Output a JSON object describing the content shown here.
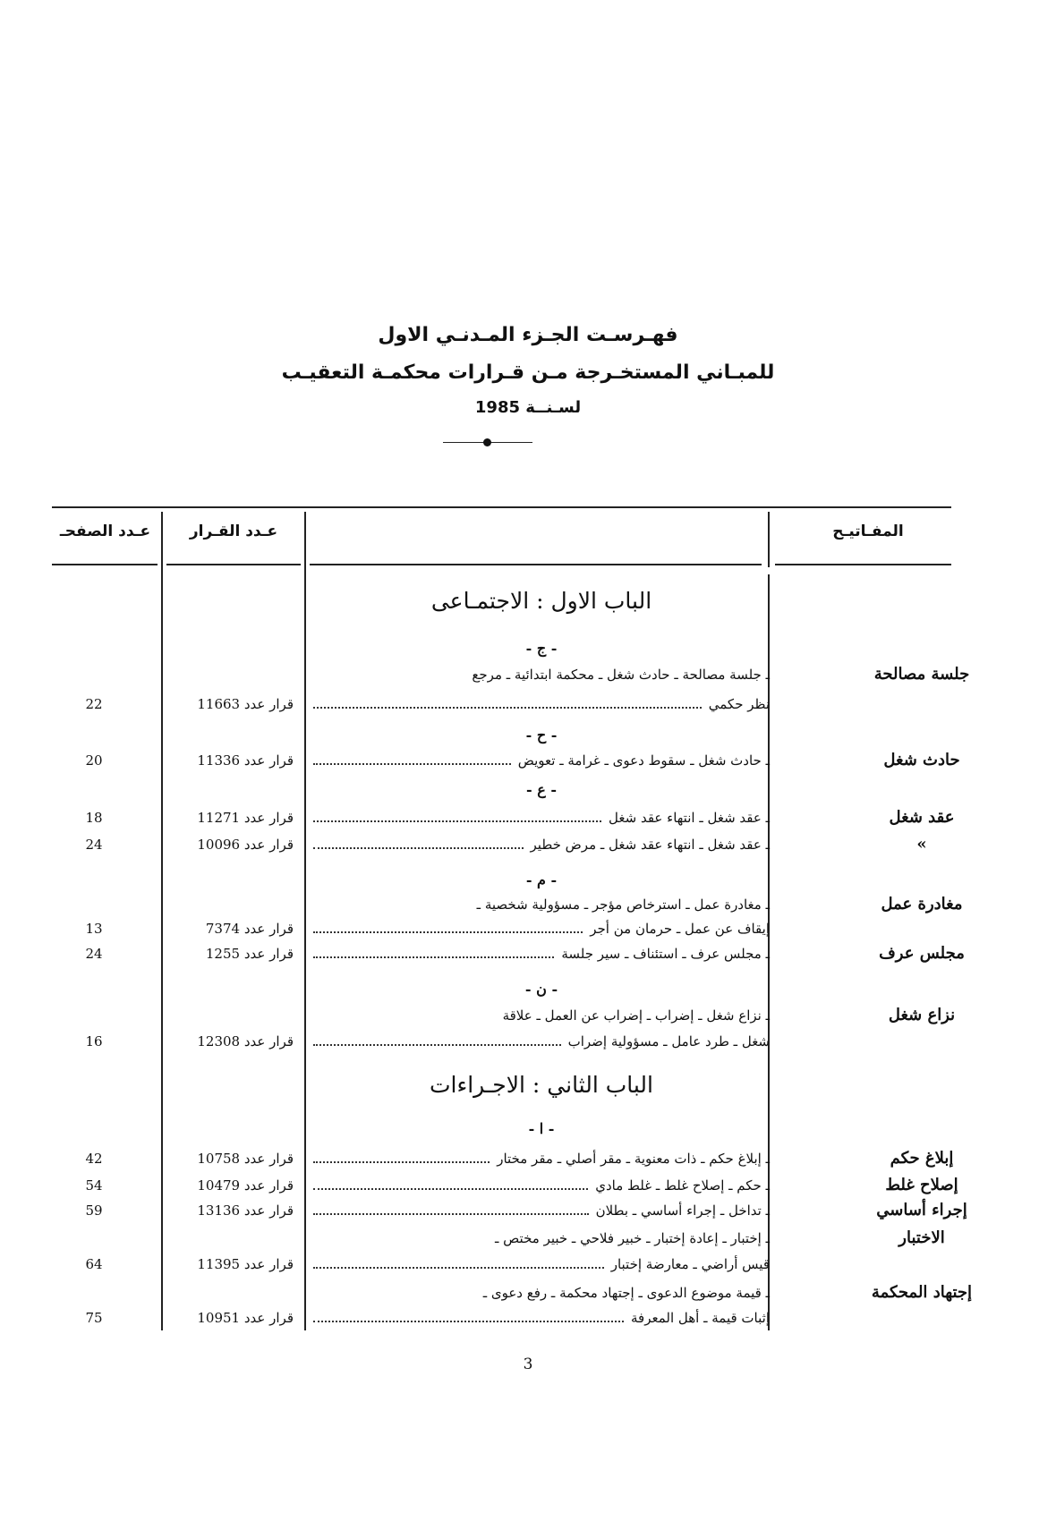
{
  "title": {
    "line1": "فهـرسـت الجـزء المـدنـي الاول",
    "line2": "للمبـاني المستخـرجة مـن قـرارات محكمـة التعقيـب",
    "line3": "لسـنــة 1985"
  },
  "table_header": {
    "keywords": "المفـاتيـح",
    "topics": "",
    "decision_number": "عـدد القـرار",
    "page_number": "عـدد الصفحـ"
  },
  "decision_label": "قرار عدد",
  "items": [
    {
      "type": "chapter",
      "text": "الباب الاول : الاجتمـاعى"
    },
    {
      "type": "letter",
      "text": "- ج -"
    },
    {
      "type": "entry",
      "keyword": "جلسة مصالحة",
      "lines": [
        "ـ جلسة مصالحة ـ حادث شغل ـ محكمة ابتدائية ـ مرجع",
        "نظر حكمي"
      ],
      "decision": "11663",
      "page": "22"
    },
    {
      "type": "letter",
      "text": "- ح -"
    },
    {
      "type": "entry",
      "keyword": "حادث شغل",
      "lines": [
        "ـ حادث شغل ـ سقوط دعوى ـ غرامة ـ تعويض"
      ],
      "decision": "11336",
      "page": "20"
    },
    {
      "type": "letter",
      "text": "- ع -"
    },
    {
      "type": "entry",
      "keyword": "عقد شغل",
      "lines": [
        "ـ عقد شغل ـ انتهاء عقد شغل"
      ],
      "decision": "11271",
      "page": "18"
    },
    {
      "type": "entry",
      "keyword": "»",
      "lines": [
        "ـ عقد شغل ـ انتهاء عقد شغل ـ مرض خطير"
      ],
      "decision": "10096",
      "page": "24"
    },
    {
      "type": "letter",
      "text": "- م -"
    },
    {
      "type": "entry",
      "keyword": "مغادرة عمل",
      "lines": [
        "ـ مغادرة عمل ـ استرخاص مؤجر ـ مسؤولية شخصية ـ",
        "إيقاف عن عمل ـ حرمان من أجر"
      ],
      "decision": "7374",
      "page": "13"
    },
    {
      "type": "entry",
      "keyword": "مجلس عرف",
      "lines": [
        "ـ مجلس عرف ـ استئناف ـ سير جلسة"
      ],
      "decision": "1255",
      "page": "24"
    },
    {
      "type": "letter",
      "text": "- ن -"
    },
    {
      "type": "entry",
      "keyword": "نزاع شغل",
      "lines": [
        "ـ نزاع شغل ـ إضراب ـ إضراب عن العمل ـ علاقة",
        "شغل ـ طرد عامل ـ مسؤولية إضراب"
      ],
      "decision": "12308",
      "page": "16"
    },
    {
      "type": "chapter",
      "text": "الباب الثاني : الاجـراءات"
    },
    {
      "type": "letter",
      "text": "- ا -"
    },
    {
      "type": "entry",
      "keyword": "إبلاغ حكم",
      "lines": [
        "ـ إبلاغ حكم ـ ذات معنوية ـ مقر أصلي ـ مقر مختار"
      ],
      "decision": "10758",
      "page": "42"
    },
    {
      "type": "entry",
      "keyword": "إصلاح غلط",
      "lines": [
        "ـ حكم ـ إصلاح غلط ـ غلط مادي"
      ],
      "decision": "10479",
      "page": "54"
    },
    {
      "type": "entry",
      "keyword": "إجراء أساسي",
      "lines": [
        "ـ تداخل ـ إجراء أساسي ـ بطلان"
      ],
      "decision": "13136",
      "page": "59"
    },
    {
      "type": "entry",
      "keyword": "الاختبار",
      "lines": [
        "ـ إختبار ـ إعادة إختبار ـ خبير فلاحي ـ خبير مختص ـ",
        "قيس أراضي ـ معارضة إختبار"
      ],
      "decision": "11395",
      "page": "64"
    },
    {
      "type": "entry",
      "keyword": "إجتهاد المحكمة",
      "lines": [
        "ـ قيمة موضوع الدعوى ـ إجتهاد محكمة ـ رفع دعوى ـ",
        "إثبات قيمة ـ أهل المعرفة"
      ],
      "decision": "10951",
      "page": "75"
    }
  ],
  "page_number": "3"
}
